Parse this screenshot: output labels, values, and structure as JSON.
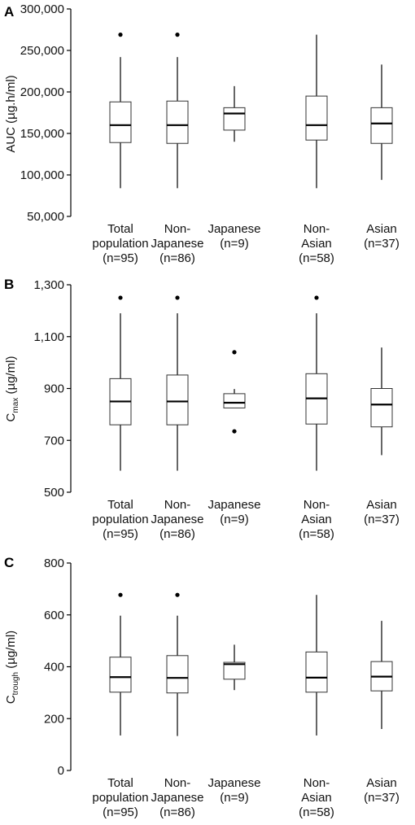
{
  "chart_data": [
    {
      "type": "box",
      "panel": "A",
      "ylabel": "AUC (µg.h/ml)",
      "ylabel_sub": "",
      "ylim": [
        50000,
        300000
      ],
      "yticks": [
        50000,
        100000,
        150000,
        200000,
        250000,
        300000
      ],
      "ytick_labels": [
        "50,000",
        "100,000",
        "150,000",
        "200,000",
        "250,000",
        "300,000"
      ],
      "categories": [
        [
          "Total",
          "population",
          "(n=95)"
        ],
        [
          "Non-",
          "Japanese",
          "(n=86)"
        ],
        [
          "Japanese",
          "(n=9)"
        ],
        [
          "Non-",
          "Asian",
          "(n=58)"
        ],
        [
          "Asian",
          "(n=37)"
        ]
      ],
      "boxes": [
        {
          "whisker_low": 84000,
          "q1": 139000,
          "median": 160000,
          "q3": 188000,
          "whisker_high": 242000,
          "outliers": [
            269000
          ]
        },
        {
          "whisker_low": 84000,
          "q1": 138000,
          "median": 160000,
          "q3": 189000,
          "whisker_high": 242000,
          "outliers": [
            269000
          ]
        },
        {
          "whisker_low": 140000,
          "q1": 154000,
          "median": 174000,
          "q3": 181000,
          "whisker_high": 207000,
          "outliers": []
        },
        {
          "whisker_low": 84000,
          "q1": 142000,
          "median": 160000,
          "q3": 195000,
          "whisker_high": 269000,
          "outliers": []
        },
        {
          "whisker_low": 94000,
          "q1": 138000,
          "median": 162000,
          "q3": 181000,
          "whisker_high": 233000,
          "outliers": []
        }
      ]
    },
    {
      "type": "box",
      "panel": "B",
      "ylabel": "C",
      "ylabel_sub": "max",
      "ylabel_suffix": " (µg/ml)",
      "ylim": [
        500,
        1300
      ],
      "yticks": [
        500,
        700,
        900,
        1100,
        1300
      ],
      "ytick_labels": [
        "500",
        "700",
        "900",
        "1,100",
        "1,300"
      ],
      "categories": [
        [
          "Total",
          "population",
          "(n=95)"
        ],
        [
          "Non-",
          "Japanese",
          "(n=86)"
        ],
        [
          "Japanese",
          "(n=9)"
        ],
        [
          "Non-",
          "Asian",
          "(n=58)"
        ],
        [
          "Asian",
          "(n=37)"
        ]
      ],
      "boxes": [
        {
          "whisker_low": 583,
          "q1": 760,
          "median": 850,
          "q3": 938,
          "whisker_high": 1190,
          "outliers": [
            1250
          ]
        },
        {
          "whisker_low": 583,
          "q1": 760,
          "median": 850,
          "q3": 952,
          "whisker_high": 1190,
          "outliers": [
            1250
          ]
        },
        {
          "whisker_low": 825,
          "q1": 825,
          "median": 845,
          "q3": 880,
          "whisker_high": 898,
          "outliers": [
            735,
            1040
          ]
        },
        {
          "whisker_low": 583,
          "q1": 763,
          "median": 862,
          "q3": 957,
          "whisker_high": 1190,
          "outliers": [
            1250
          ]
        },
        {
          "whisker_low": 643,
          "q1": 752,
          "median": 838,
          "q3": 900,
          "whisker_high": 1058,
          "outliers": []
        }
      ]
    },
    {
      "type": "box",
      "panel": "C",
      "ylabel": "C",
      "ylabel_sub": "trough",
      "ylabel_suffix": " (µg/ml)",
      "ylim": [
        0,
        800
      ],
      "yticks": [
        0,
        200,
        400,
        600,
        800
      ],
      "ytick_labels": [
        "0",
        "200",
        "400",
        "600",
        "800"
      ],
      "categories": [
        [
          "Total",
          "population",
          "(n=95)"
        ],
        [
          "Non-",
          "Japanese",
          "(n=86)"
        ],
        [
          "Japanese",
          "(n=9)"
        ],
        [
          "Non-",
          "Asian",
          "(n=58)"
        ],
        [
          "Asian",
          "(n=37)"
        ]
      ],
      "boxes": [
        {
          "whisker_low": 135,
          "q1": 302,
          "median": 360,
          "q3": 437,
          "whisker_high": 597,
          "outliers": [
            677
          ]
        },
        {
          "whisker_low": 133,
          "q1": 299,
          "median": 357,
          "q3": 443,
          "whisker_high": 597,
          "outliers": [
            677
          ]
        },
        {
          "whisker_low": 310,
          "q1": 352,
          "median": 410,
          "q3": 417,
          "whisker_high": 485,
          "outliers": []
        },
        {
          "whisker_low": 135,
          "q1": 302,
          "median": 358,
          "q3": 457,
          "whisker_high": 677,
          "outliers": []
        },
        {
          "whisker_low": 160,
          "q1": 307,
          "median": 362,
          "q3": 420,
          "whisker_high": 577,
          "outliers": []
        }
      ]
    }
  ]
}
